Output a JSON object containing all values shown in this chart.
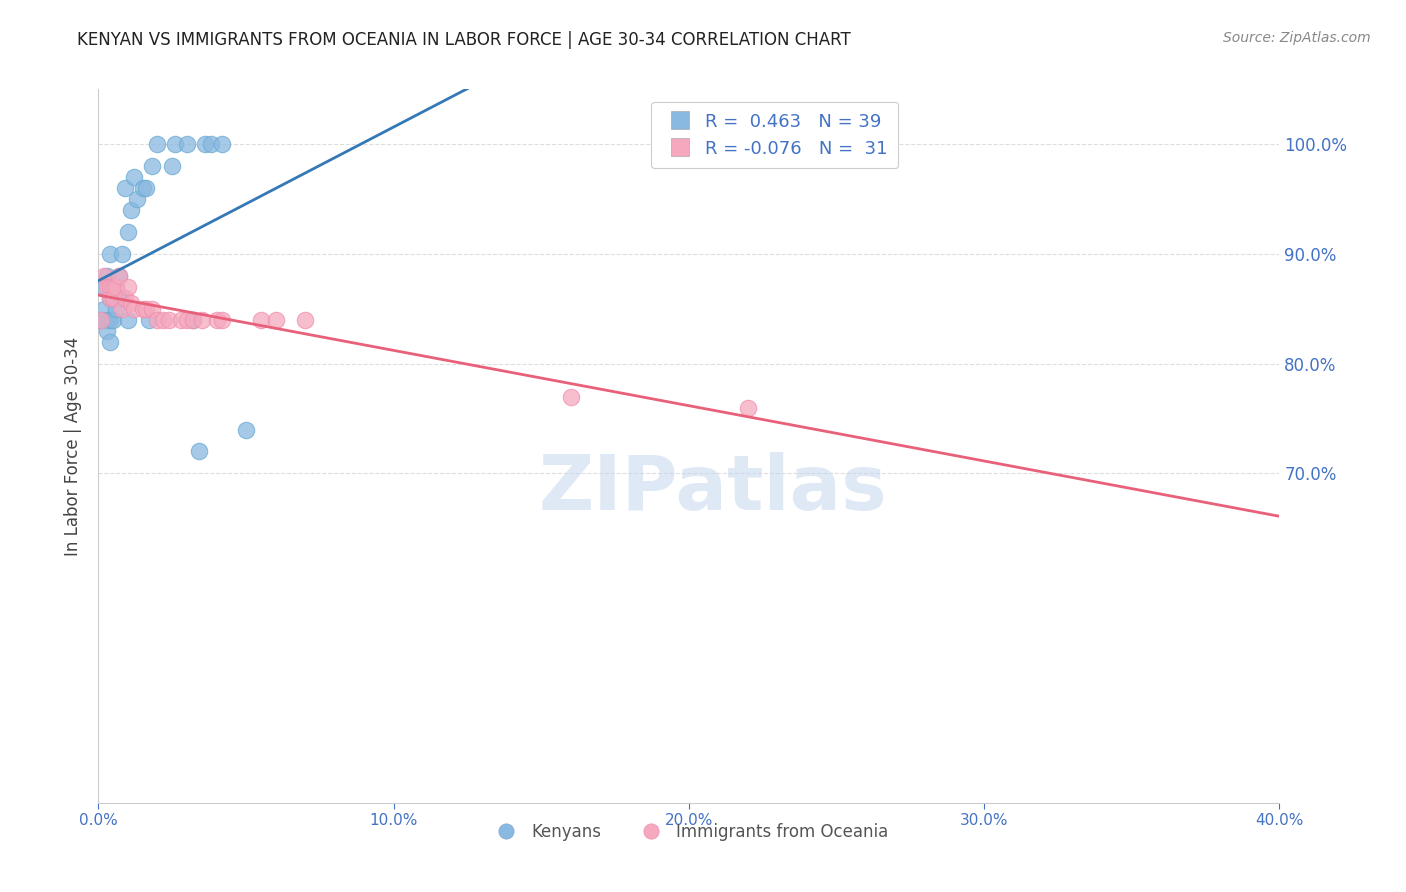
{
  "title": "KENYAN VS IMMIGRANTS FROM OCEANIA IN LABOR FORCE | AGE 30-34 CORRELATION CHART",
  "source_text": "Source: ZipAtlas.com",
  "ylabel": "In Labor Force | Age 30-34",
  "legend_labels": [
    "Kenyans",
    "Immigrants from Oceania"
  ],
  "R_blue": 0.463,
  "N_blue": 39,
  "R_pink": -0.076,
  "N_pink": 31,
  "blue_color": "#89b8e0",
  "pink_color": "#f5a8be",
  "blue_line_color": "#3478b5",
  "pink_line_color": "#e8607a",
  "watermark": "ZIPatlas",
  "blue_x": [
    0.001,
    0.002,
    0.002,
    0.003,
    0.003,
    0.003,
    0.004,
    0.004,
    0.004,
    0.004,
    0.005,
    0.005,
    0.005,
    0.006,
    0.006,
    0.007,
    0.007,
    0.008,
    0.008,
    0.009,
    0.01,
    0.01,
    0.011,
    0.012,
    0.013,
    0.015,
    0.016,
    0.017,
    0.018,
    0.02,
    0.025,
    0.026,
    0.03,
    0.032,
    0.034,
    0.036,
    0.038,
    0.042,
    0.05
  ],
  "blue_y": [
    0.84,
    0.87,
    0.85,
    0.88,
    0.84,
    0.83,
    0.9,
    0.86,
    0.84,
    0.82,
    0.87,
    0.86,
    0.84,
    0.87,
    0.85,
    0.86,
    0.88,
    0.9,
    0.86,
    0.96,
    0.84,
    0.92,
    0.94,
    0.97,
    0.95,
    0.96,
    0.96,
    0.84,
    0.98,
    1.0,
    0.98,
    1.0,
    1.0,
    0.84,
    0.72,
    1.0,
    1.0,
    1.0,
    0.74
  ],
  "pink_x": [
    0.001,
    0.002,
    0.003,
    0.004,
    0.004,
    0.005,
    0.005,
    0.006,
    0.007,
    0.008,
    0.009,
    0.01,
    0.011,
    0.012,
    0.015,
    0.016,
    0.018,
    0.02,
    0.022,
    0.024,
    0.028,
    0.03,
    0.032,
    0.035,
    0.04,
    0.042,
    0.055,
    0.06,
    0.07,
    0.16,
    0.22
  ],
  "pink_y": [
    0.84,
    0.88,
    0.87,
    0.87,
    0.86,
    0.87,
    0.86,
    0.87,
    0.88,
    0.85,
    0.86,
    0.87,
    0.855,
    0.85,
    0.85,
    0.85,
    0.85,
    0.84,
    0.84,
    0.84,
    0.84,
    0.84,
    0.84,
    0.84,
    0.84,
    0.84,
    0.84,
    0.84,
    0.84,
    0.77,
    0.76
  ],
  "xmin": 0.0,
  "xmax": 0.4,
  "ymin": 0.4,
  "ymax": 1.05,
  "right_yticks": [
    1.0,
    0.9,
    0.8,
    0.7
  ],
  "right_ytick_labels": [
    "100.0%",
    "90.0%",
    "80.0%",
    "70.0%"
  ],
  "xtick_positions": [
    0.0,
    0.1,
    0.2,
    0.3,
    0.4
  ],
  "xtick_labels": [
    "0.0%",
    "10.0%",
    "20.0%",
    "30.0%",
    "40.0%"
  ],
  "grid_color": "#dddddd",
  "spine_color": "#cccccc",
  "axis_label_color": "#4472c4",
  "title_color": "#222222",
  "source_color": "#888888"
}
